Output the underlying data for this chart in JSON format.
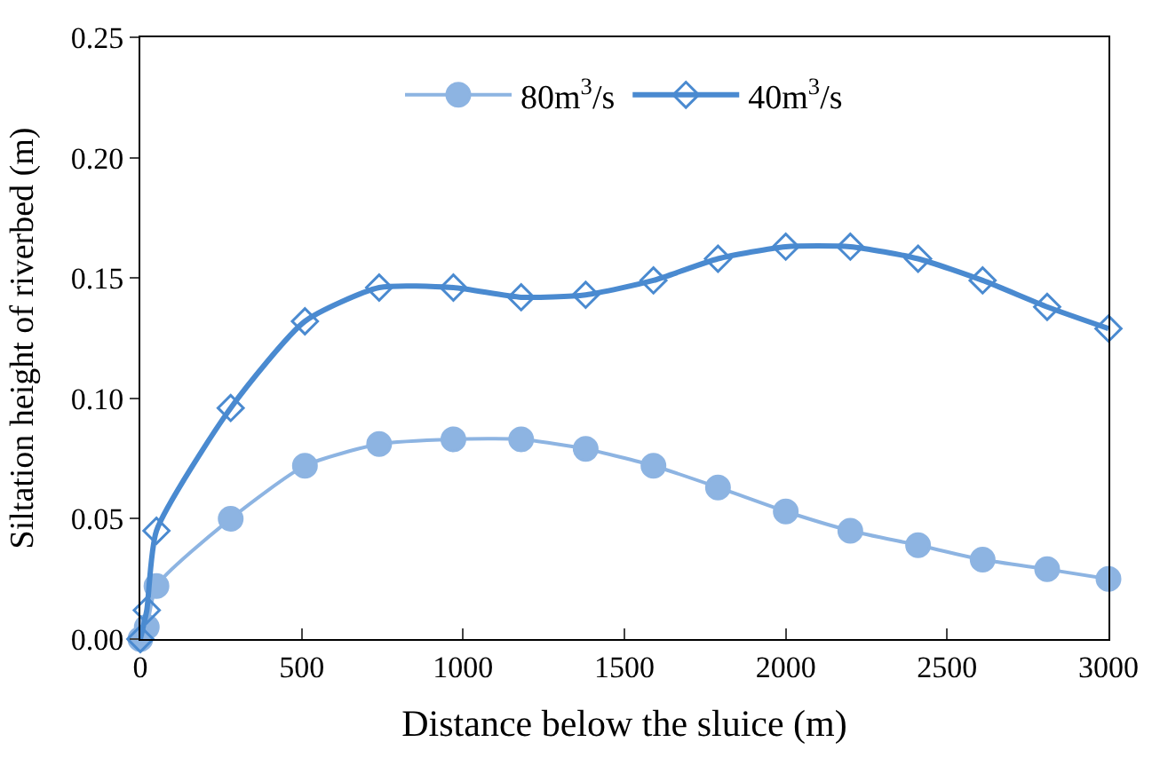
{
  "chart_data": {
    "type": "line",
    "xlabel": "Distance below the sluice (m)",
    "ylabel": "Siltation height of riverbed (m)",
    "x": [
      0,
      20,
      50,
      280,
      510,
      740,
      970,
      1180,
      1380,
      1590,
      1790,
      2000,
      2200,
      2410,
      2610,
      2810,
      3000
    ],
    "series": [
      {
        "name": "80m$^{3}$/s",
        "color": "#8db4e2",
        "marker": "circle",
        "values": [
          0,
          0.005,
          0.022,
          0.05,
          0.072,
          0.081,
          0.083,
          0.083,
          0.079,
          0.072,
          0.063,
          0.053,
          0.045,
          0.039,
          0.033,
          0.029,
          0.025
        ]
      },
      {
        "name": "40m$^{3}$/s",
        "color": "#4a8ad0",
        "marker": "diamond",
        "values": [
          0,
          0.012,
          0.045,
          0.096,
          0.132,
          0.146,
          0.146,
          0.142,
          0.143,
          0.149,
          0.158,
          0.163,
          0.163,
          0.158,
          0.149,
          0.138,
          0.129
        ]
      }
    ],
    "xlim": [
      0,
      3000
    ],
    "xticks": [
      0,
      500,
      1000,
      1500,
      2000,
      2500,
      3000
    ],
    "ylim": [
      0,
      0.25
    ],
    "yticks": [
      {
        "value": 0,
        "label": "0.00"
      },
      {
        "value": 0.05,
        "label": "0.05"
      },
      {
        "value": 0.1,
        "label": "0.10"
      },
      {
        "value": 0.15,
        "label": "0.15"
      },
      {
        "value": 0.2,
        "label": "0.20"
      },
      {
        "value": 0.25,
        "label": "0.25"
      }
    ],
    "legend": "top",
    "line_style": "solid"
  }
}
